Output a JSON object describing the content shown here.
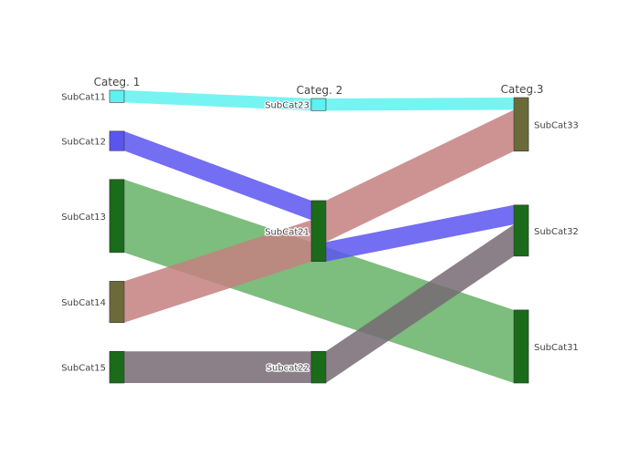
{
  "chart_data": {
    "type": "sankey",
    "columns": [
      {
        "label": "Categ. 1",
        "nodes": [
          "SubCat11",
          "SubCat12",
          "SubCat13",
          "SubCat14",
          "SubCat15"
        ]
      },
      {
        "label": "Categ. 2",
        "nodes": [
          "SubCat23",
          "SubCat21",
          "Subcat22"
        ]
      },
      {
        "label": "Categ.3",
        "nodes": [
          "SubCat33",
          "SubCat32",
          "SubCat31"
        ]
      }
    ],
    "nodes": [
      {
        "id": "SubCat11",
        "color": "#5df2f0"
      },
      {
        "id": "SubCat12",
        "color": "#5b55f0"
      },
      {
        "id": "SubCat13",
        "color": "#1a6b1a"
      },
      {
        "id": "SubCat14",
        "color": "#6b6b3a"
      },
      {
        "id": "SubCat15",
        "color": "#1a6b1a"
      },
      {
        "id": "SubCat23",
        "color": "#5df2f0"
      },
      {
        "id": "SubCat21",
        "color": "#1a6b1a"
      },
      {
        "id": "Subcat22",
        "color": "#1a6b1a"
      },
      {
        "id": "SubCat33",
        "color": "#6b6b3a"
      },
      {
        "id": "SubCat32",
        "color": "#1a6b1a"
      },
      {
        "id": "SubCat31",
        "color": "#1a6b1a"
      }
    ],
    "links": [
      {
        "source": "SubCat11",
        "target": "SubCat23",
        "value": 5,
        "color": "#5df2f0"
      },
      {
        "source": "SubCat12",
        "target": "SubCat21",
        "value": 8,
        "color": "#5b55f0"
      },
      {
        "source": "SubCat13",
        "target": "SubCat31",
        "value": 30,
        "color": "#66b266"
      },
      {
        "source": "SubCat14",
        "target": "SubCat21",
        "value": 17,
        "color": "#c48080"
      },
      {
        "source": "SubCat15",
        "target": "Subcat22",
        "value": 13,
        "color": "#776a73"
      },
      {
        "source": "SubCat23",
        "target": "SubCat33",
        "value": 5,
        "color": "#5df2f0"
      },
      {
        "source": "SubCat21",
        "target": "SubCat32",
        "value": 8,
        "color": "#5b55f0"
      },
      {
        "source": "SubCat21",
        "target": "SubCat33",
        "value": 17,
        "color": "#c48080"
      },
      {
        "source": "Subcat22",
        "target": "SubCat32",
        "value": 13,
        "color": "#776a73"
      }
    ]
  }
}
